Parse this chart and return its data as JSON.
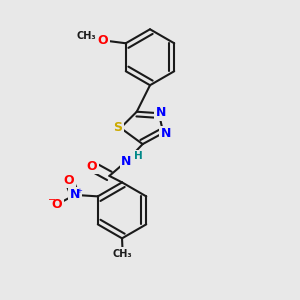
{
  "bg_color": "#e8e8e8",
  "bond_color": "#1a1a1a",
  "bond_width": 1.5,
  "atom_colors": {
    "C": "#1a1a1a",
    "N": "#0000ff",
    "O": "#ff0000",
    "S": "#ccaa00",
    "H": "#008888"
  },
  "font_size_atom": 9.0,
  "font_size_small": 7.5,
  "font_size_subscript": 7.0
}
